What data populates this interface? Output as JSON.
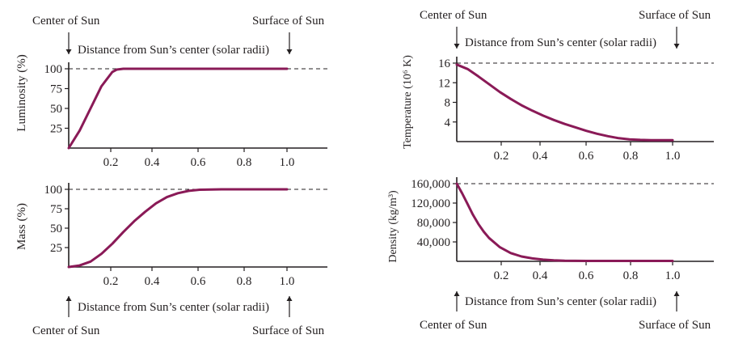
{
  "colors": {
    "curve": "#8a1a57",
    "axis": "#231f20",
    "dashed_line": "#231f20",
    "text": "#231f20"
  },
  "annotations": {
    "center_of_sun": "Center of Sun",
    "surface_of_sun": "Surface of Sun",
    "distance_label": "Distance from Sun’s center (solar radii)"
  },
  "chart_data": [
    {
      "type": "line",
      "panel": "top-left",
      "ylabel": "Luminosity (%)",
      "xlabel": "",
      "xlim": [
        0,
        1.2
      ],
      "ylim": [
        0,
        100
      ],
      "xticks": [
        "0.2",
        "0.4",
        "0.6",
        "0.8",
        "1.0"
      ],
      "yticks": [
        "25",
        "50",
        "75",
        "100"
      ],
      "reference_line": 100,
      "series": [
        {
          "x": [
            0,
            0.05,
            0.1,
            0.15,
            0.2,
            0.22,
            0.25,
            0.3,
            0.4,
            0.6,
            0.8,
            1.0
          ],
          "values": [
            0,
            22,
            50,
            78,
            96,
            99,
            100,
            100,
            100,
            100,
            100,
            100
          ]
        }
      ]
    },
    {
      "type": "line",
      "panel": "bottom-left",
      "ylabel": "Mass (%)",
      "xlabel": "",
      "xlim": [
        0,
        1.2
      ],
      "ylim": [
        0,
        100
      ],
      "xticks": [
        "0.2",
        "0.4",
        "0.6",
        "0.8",
        "1.0"
      ],
      "yticks": [
        "25",
        "50",
        "75",
        "100"
      ],
      "reference_line": 100,
      "series": [
        {
          "x": [
            0,
            0.05,
            0.1,
            0.15,
            0.2,
            0.25,
            0.3,
            0.35,
            0.4,
            0.45,
            0.5,
            0.55,
            0.6,
            0.7,
            0.8,
            1.0
          ],
          "values": [
            0,
            2,
            7,
            17,
            30,
            45,
            59,
            71,
            82,
            90,
            95,
            98,
            99.5,
            100,
            100,
            100
          ]
        }
      ]
    },
    {
      "type": "line",
      "panel": "top-right",
      "ylabel": "Temperature (10⁶ K)",
      "xlabel": "",
      "xlim": [
        0,
        1.2
      ],
      "ylim": [
        0,
        16
      ],
      "xticks": [
        "0.2",
        "0.4",
        "0.6",
        "0.8",
        "1.0"
      ],
      "yticks": [
        "4",
        "8",
        "12",
        "16"
      ],
      "reference_line": 16,
      "series": [
        {
          "x": [
            0,
            0.05,
            0.1,
            0.15,
            0.2,
            0.25,
            0.3,
            0.35,
            0.4,
            0.45,
            0.5,
            0.55,
            0.6,
            0.65,
            0.7,
            0.75,
            0.8,
            0.85,
            0.9,
            0.95,
            1.0
          ],
          "values": [
            15.7,
            14.8,
            13.3,
            11.7,
            10.1,
            8.7,
            7.4,
            6.3,
            5.3,
            4.4,
            3.6,
            2.9,
            2.2,
            1.6,
            1.1,
            0.7,
            0.45,
            0.35,
            0.3,
            0.3,
            0.3
          ]
        }
      ]
    },
    {
      "type": "line",
      "panel": "bottom-right",
      "ylabel": "Density (kg/m³)",
      "xlabel": "",
      "xlim": [
        0,
        1.2
      ],
      "ylim": [
        0,
        160000
      ],
      "xticks": [
        "0.2",
        "0.4",
        "0.6",
        "0.8",
        "1.0"
      ],
      "yticks": [
        "40,000",
        "80,000",
        "120,000",
        "160,000"
      ],
      "reference_line": 160000,
      "series": [
        {
          "x": [
            0,
            0.025,
            0.05,
            0.075,
            0.1,
            0.125,
            0.15,
            0.2,
            0.25,
            0.3,
            0.35,
            0.4,
            0.45,
            0.5,
            0.6,
            0.8,
            1.0
          ],
          "values": [
            160000,
            140000,
            118000,
            96000,
            77000,
            61000,
            48000,
            29000,
            17000,
            10000,
            6000,
            3500,
            2000,
            1200,
            800,
            800,
            800
          ]
        }
      ]
    }
  ]
}
